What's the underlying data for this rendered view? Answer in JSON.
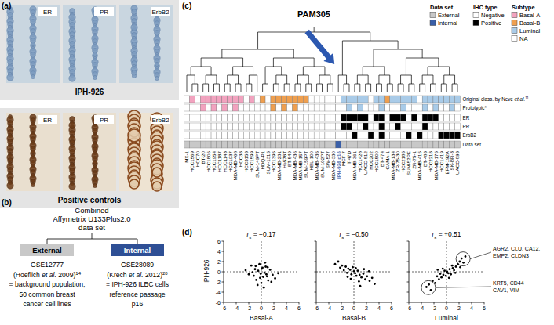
{
  "panel_a": {
    "label": "(a)",
    "stains": [
      "ER",
      "PR",
      "ErbB2"
    ],
    "rows": [
      {
        "label": "IPH-926"
      },
      {
        "label": "Positive controls"
      }
    ]
  },
  "panel_b": {
    "label": "(b)",
    "root": [
      "Combined",
      "Affymetrix U133Plus2.0",
      "data set"
    ],
    "branches": [
      {
        "box": "External",
        "color": "#c8c8c8",
        "lines": [
          [
            {
              "text": "GSE12777"
            }
          ],
          [
            {
              "text": "(Hoeflich "
            },
            {
              "text": "et al.",
              "style": "italic"
            },
            {
              "text": " 2009)"
            },
            {
              "text": "14",
              "style": "sup"
            }
          ],
          [
            {
              "text": "= background population,"
            }
          ],
          [
            {
              "text": "50 common breast"
            }
          ],
          [
            {
              "text": "cancer cell lines"
            }
          ]
        ]
      },
      {
        "box": "Internal",
        "color": "#2e4f95",
        "lines": [
          [
            {
              "text": "GSE28089"
            }
          ],
          [
            {
              "text": "(Krech "
            },
            {
              "text": "et al.",
              "style": "italic"
            },
            {
              "text": " 2012)"
            },
            {
              "text": "20",
              "style": "sup"
            }
          ],
          [
            {
              "text": "= IPH-926 ILBC cells"
            }
          ],
          [
            {
              "text": "reference passage"
            }
          ],
          [
            {
              "text": "p16"
            }
          ]
        ]
      }
    ]
  },
  "panel_c": {
    "label": "(c)",
    "title": "PAM305",
    "legend": {
      "groups": [
        {
          "title": "Data set",
          "items": [
            {
              "label": "External",
              "color": "#c8c8c8"
            },
            {
              "label": "Internal",
              "color": "#3a5fa8"
            }
          ]
        },
        {
          "title": "IHC type",
          "items": [
            {
              "label": "Negative",
              "color": "#ffffff"
            },
            {
              "label": "Positive",
              "color": "#000000"
            }
          ]
        },
        {
          "title": "Subtype",
          "items": [
            {
              "label": "Basal-A",
              "color": "#f2a3bf"
            },
            {
              "label": "Basal-B",
              "color": "#ef9f4f"
            },
            {
              "label": "Luminal",
              "color": "#a9cbe8"
            },
            {
              "label": "NA",
              "color": "#ffffff"
            }
          ]
        }
      ]
    },
    "leaves": [
      "MX-1",
      "HCC1569",
      "HCC70",
      "BT-20",
      "HCC1806",
      "HCC1954",
      "HCC1187",
      "HCC1143",
      "HCC1937",
      "MDA-MB-468",
      "HCC38",
      "HCC3153",
      "HCC1599",
      "SUM-149PT",
      "HDQ-P1",
      "SUM-1315",
      "HCC1395",
      "MDA-MB-231",
      "Hs578T",
      "BT-549",
      "MDA-MB-436",
      "MDA-MB-157",
      "SUM-159PT",
      "HBL-100",
      "MDA-MB-435",
      "SUM-102PT",
      "SW-527",
      "MDA-MB-330",
      "IPH-926 p16",
      "MCF-7",
      "T-47D",
      "MDA-MB-361",
      "HCC1428",
      "UACC-812",
      "HCC202",
      "HCC1500",
      "BT-474",
      "CAMA-1",
      "MDA-MB-134",
      "ZR-75-30",
      "HCC2185",
      "SUM-52PE",
      "ZR-75-1",
      "MDA-MB-415",
      "BT-483",
      "HCC2218",
      "MDA-MB-175",
      "HCC1419",
      "EFM-192A",
      "SK-BR-3",
      "UACC-893"
    ],
    "highlight_index": 28,
    "tree": [
      [
        [
          [
            [
              0,
              [
                1,
                2
              ]
            ],
            [
              [
                3,
                4
              ],
              [
                5,
                6
              ]
            ]
          ],
          [
            [
              [
                7,
                8
              ],
              [
                9,
                10
              ]
            ],
            [
              [
                11,
                12
              ],
              13
            ]
          ]
        ],
        [
          [
            [
              14,
              15
            ],
            [
              [
                16,
                17
              ],
              [
                18,
                19
              ]
            ]
          ],
          [
            [
              [
                20,
                21
              ],
              [
                22,
                23
              ]
            ],
            [
              [
                24,
                25
              ],
              [
                26,
                27
              ]
            ]
          ]
        ]
      ],
      [
        [
          28,
          [
            29,
            30
          ]
        ],
        [
          [
            [
              [
                31,
                32
              ],
              [
                33,
                34
              ]
            ],
            [
              [
                35,
                36
              ],
              [
                37,
                38
              ]
            ]
          ],
          [
            [
              [
                39,
                40
              ],
              [
                41,
                42
              ]
            ],
            [
              [
                [
                  43,
                  44
                ],
                [
                  45,
                  46
                ]
              ],
              [
                [
                  47,
                  48
                ],
                [
                  49,
                  50
                ]
              ]
            ]
          ]
        ]
      ]
    ],
    "tracks": [
      {
        "label": [
          {
            "text": "Original class. by Neve "
          },
          {
            "text": "et al.",
            "style": "italic"
          },
          {
            "text": "11",
            "style": "sup"
          }
        ],
        "legend": 2,
        "values": [
          "NA",
          "Basal-A",
          "NA",
          "Basal-A",
          "Basal-A",
          "Basal-A",
          "Basal-A",
          "Basal-A",
          "Basal-A",
          "Basal-A",
          "Basal-A",
          "NA",
          "Basal-A",
          "NA",
          "Basal-B",
          "NA",
          "Basal-B",
          "Basal-B",
          "Basal-B",
          "Basal-B",
          "Basal-B",
          "Basal-B",
          "Basal-B",
          "NA",
          "NA",
          "NA",
          "NA",
          "NA",
          "NA",
          "Luminal",
          "Luminal",
          "Luminal",
          "Luminal",
          "Luminal",
          "NA",
          "Luminal",
          "Luminal",
          "Basal-B",
          "Luminal",
          "Luminal",
          "Luminal",
          "Luminal",
          "Luminal",
          "NA",
          "Luminal",
          "Luminal",
          "Luminal",
          "Luminal",
          "Luminal",
          "Luminal",
          "Luminal"
        ]
      },
      {
        "label": [
          {
            "text": "Prototypic*"
          }
        ],
        "legend": 2,
        "values": [
          "NA",
          "NA",
          "NA",
          "Basal-A",
          "NA",
          "Basal-A",
          "NA",
          "Basal-A",
          "NA",
          "Basal-A",
          "NA",
          "NA",
          "NA",
          "NA",
          "NA",
          "NA",
          "Basal-B",
          "NA",
          "Basal-B",
          "NA",
          "Basal-B",
          "NA",
          "NA",
          "NA",
          "NA",
          "NA",
          "NA",
          "NA",
          "NA",
          "NA",
          "Luminal",
          "NA",
          "Luminal",
          "NA",
          "NA",
          "NA",
          "Luminal",
          "NA",
          "NA",
          "NA",
          "Luminal",
          "NA",
          "NA",
          "NA",
          "Luminal",
          "NA",
          "Luminal",
          "NA",
          "NA",
          "Luminal",
          "NA"
        ]
      },
      {
        "label": [
          {
            "text": "ER"
          }
        ],
        "legend": 1,
        "values": [
          "Negative",
          "Negative",
          "Negative",
          "Negative",
          "Negative",
          "Negative",
          "Negative",
          "Negative",
          "Negative",
          "Negative",
          "Negative",
          "Negative",
          "Negative",
          "Negative",
          "Negative",
          "Negative",
          "Negative",
          "Negative",
          "Negative",
          "Negative",
          "Negative",
          "Negative",
          "Negative",
          "Negative",
          "Negative",
          "Negative",
          "Negative",
          "Negative",
          "Negative",
          "Positive",
          "Positive",
          "Positive",
          "Positive",
          "Positive",
          "Negative",
          "Positive",
          "Positive",
          "Negative",
          "Positive",
          "Positive",
          "Positive",
          "Negative",
          "Positive",
          "Negative",
          "Positive",
          "Positive",
          "Positive",
          "Negative",
          "Negative",
          "Negative",
          "Negative"
        ]
      },
      {
        "label": [
          {
            "text": "PR"
          }
        ],
        "legend": 1,
        "values": [
          "Negative",
          "Negative",
          "Negative",
          "Negative",
          "Negative",
          "Negative",
          "Negative",
          "Negative",
          "Negative",
          "Negative",
          "Negative",
          "Negative",
          "Negative",
          "Negative",
          "Negative",
          "Negative",
          "Negative",
          "Negative",
          "Negative",
          "Negative",
          "Negative",
          "Negative",
          "Negative",
          "Negative",
          "Negative",
          "Negative",
          "Negative",
          "Negative",
          "Negative",
          "Positive",
          "Positive",
          "Negative",
          "Negative",
          "Positive",
          "Negative",
          "Negative",
          "Positive",
          "Negative",
          "Negative",
          "Positive",
          "Negative",
          "Negative",
          "Negative",
          "Negative",
          "Positive",
          "Negative",
          "Negative",
          "Negative",
          "Negative",
          "Negative",
          "Negative"
        ]
      },
      {
        "label": [
          {
            "text": "ErbB2"
          }
        ],
        "legend": 1,
        "values": [
          "Negative",
          "Negative",
          "Negative",
          "Negative",
          "Negative",
          "Negative",
          "Negative",
          "Negative",
          "Negative",
          "Negative",
          "Negative",
          "Negative",
          "Negative",
          "Negative",
          "Negative",
          "Negative",
          "Negative",
          "Negative",
          "Negative",
          "Negative",
          "Negative",
          "Negative",
          "Negative",
          "Negative",
          "Negative",
          "Negative",
          "Negative",
          "Negative",
          "Negative",
          "Negative",
          "Negative",
          "Positive",
          "Negative",
          "Negative",
          "Positive",
          "Negative",
          "Positive",
          "Negative",
          "Negative",
          "Negative",
          "Negative",
          "Positive",
          "Negative",
          "Positive",
          "Negative",
          "Negative",
          "Negative",
          "Positive",
          "Positive",
          "Positive",
          "Positive"
        ]
      },
      {
        "label": [
          {
            "text": "Data set"
          }
        ],
        "legend": 0,
        "values": [
          "External",
          "External",
          "External",
          "External",
          "External",
          "External",
          "External",
          "External",
          "External",
          "External",
          "External",
          "External",
          "External",
          "External",
          "External",
          "External",
          "External",
          "External",
          "External",
          "External",
          "External",
          "External",
          "External",
          "External",
          "External",
          "External",
          "External",
          "External",
          "Internal",
          "External",
          "External",
          "External",
          "External",
          "External",
          "External",
          "External",
          "External",
          "External",
          "External",
          "External",
          "External",
          "External",
          "External",
          "External",
          "External",
          "External",
          "External",
          "External",
          "External",
          "External",
          "External"
        ]
      }
    ]
  },
  "panel_d": {
    "label": "(d)"
  },
  "chart_data": [
    {
      "type": "scatter",
      "title": "rs = −0.17",
      "x_label": "Basal-A",
      "y_label": "IPH-926",
      "color": "#000000",
      "marker": "circle",
      "xlim": [
        -6,
        6
      ],
      "ylim": [
        -6,
        6
      ],
      "xticks": [
        -6,
        -4,
        -2,
        0,
        2,
        4,
        6
      ],
      "yticks": [
        -6,
        -4,
        -2,
        0,
        2,
        4,
        6
      ],
      "ref_lines": {
        "x": [
          0
        ],
        "y": [
          0
        ]
      },
      "x": [
        -2.5,
        -2,
        -1.6,
        -1.2,
        -1,
        -0.8,
        -0.5,
        -0.3,
        -0.1,
        0,
        0.2,
        0.3,
        0.5,
        0.7,
        0.9,
        1.1,
        1.4,
        1.8,
        2.2,
        2.7,
        -0.6,
        0.1,
        0.4,
        -1.4,
        1.0,
        -0.2,
        0.6,
        1.6,
        -0.9,
        0.8
      ],
      "values": [
        0.3,
        -0.5,
        1.2,
        -0.8,
        0.5,
        -1.6,
        0.2,
        1.5,
        -0.4,
        -2.2,
        0.8,
        -1.0,
        -0.2,
        1.0,
        -0.9,
        -1.7,
        0.4,
        -0.6,
        -1.3,
        -0.3,
        -2.6,
        0.6,
        -3.1,
        -0.1,
        0.9,
        -1.2,
        1.8,
        -2.0,
        1.1,
        -0.5
      ]
    },
    {
      "type": "scatter",
      "title": "rs = −0.50",
      "x_label": "Basal-B",
      "color": "#000000",
      "marker": "circle",
      "tick_labels": "x",
      "xlim": [
        -6,
        6
      ],
      "ylim": [
        -6,
        6
      ],
      "xticks": [
        -6,
        -4,
        -2,
        0,
        2,
        4,
        6
      ],
      "yticks": [
        -6,
        -4,
        -2,
        0,
        2,
        4,
        6
      ],
      "ref_lines": {
        "x": [
          0
        ],
        "y": [
          0
        ]
      },
      "x": [
        -3,
        -2.5,
        -2.2,
        -1.9,
        -1.6,
        -1.3,
        -1.1,
        -0.9,
        -0.6,
        -0.4,
        -0.2,
        0,
        0.2,
        0.4,
        0.6,
        0.9,
        1.2,
        1.5,
        1.8,
        2.1,
        2.5,
        2.9,
        3.3,
        -1.0,
        0.3,
        0.8,
        1.6,
        -0.5,
        2.4,
        1.0
      ],
      "values": [
        1.5,
        2.0,
        0.8,
        1.2,
        0.3,
        1.0,
        -0.2,
        0.6,
        0.4,
        -0.5,
        0.9,
        0.1,
        -0.3,
        -0.8,
        0.2,
        -0.6,
        -1.1,
        -0.4,
        -1.5,
        -0.9,
        -1.8,
        -1.2,
        -2.4,
        -1.0,
        0.7,
        -1.9,
        0.5,
        -1.4,
        0.1,
        -2.8
      ]
    },
    {
      "type": "scatter",
      "title": "rs = +0.51",
      "x_label": "Luminal",
      "color": "#000000",
      "marker": "circle",
      "tick_labels": "x",
      "xlim": [
        -6,
        6
      ],
      "ylim": [
        -6,
        6
      ],
      "xticks": [
        -6,
        -4,
        -2,
        0,
        2,
        4,
        6
      ],
      "yticks": [
        -6,
        -4,
        -2,
        0,
        2,
        4,
        6
      ],
      "ref_lines": {
        "x": [
          0
        ],
        "y": [
          0
        ]
      },
      "x": [
        -3.2,
        -2.8,
        -2.5,
        -2.2,
        -1.8,
        -1.5,
        -1.2,
        -1.0,
        -0.8,
        -0.5,
        -0.3,
        -0.1,
        0.1,
        0.3,
        0.5,
        0.7,
        1.0,
        1.2,
        1.5,
        1.8,
        2.1,
        2.4,
        2.7,
        3.0,
        -0.6,
        0.4,
        0.9,
        1.4,
        -1.4,
        2.2
      ],
      "values": [
        -3.0,
        -2.5,
        -3.6,
        -1.8,
        -2.2,
        -0.9,
        -1.5,
        -0.4,
        -1.1,
        -0.6,
        0.2,
        -0.8,
        0.0,
        -0.3,
        0.5,
        -0.5,
        0.7,
        0.3,
        1.0,
        1.5,
        2.0,
        2.6,
        1.8,
        3.0,
        0.6,
        -1.2,
        1.2,
        -0.2,
        0.4,
        0.9
      ],
      "annotations": [
        {
          "lines": [
            "AGR2, CLU, CA12,",
            "EMP2, CLDN3"
          ]
        },
        {
          "lines": [
            "KRT5, CD44",
            "CAV1, VIM"
          ]
        }
      ]
    }
  ]
}
